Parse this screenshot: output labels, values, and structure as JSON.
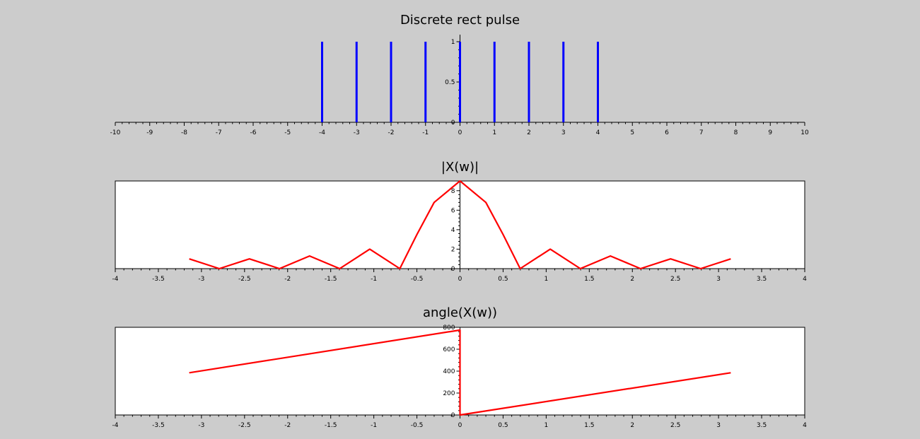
{
  "chart_data": [
    {
      "type": "stem",
      "title": "Discrete rect pulse",
      "xlim": [
        -10,
        10
      ],
      "ylim": [
        0,
        1
      ],
      "xticks": [
        "-10",
        "-9",
        "-8",
        "-7",
        "-6",
        "-5",
        "-4",
        "-3",
        "-2",
        "-1",
        "0",
        "1",
        "2",
        "3",
        "4",
        "5",
        "6",
        "7",
        "8",
        "9",
        "10"
      ],
      "yticks": [
        "0",
        "0.5",
        "1"
      ],
      "boxed": false,
      "series": [
        {
          "x": [
            -4,
            -3,
            -2,
            -1,
            0,
            1,
            2,
            3,
            4
          ],
          "y": [
            1,
            1,
            1,
            1,
            1,
            1,
            1,
            1,
            1
          ],
          "color": "#0000ff"
        }
      ]
    },
    {
      "type": "line",
      "title": "|X(w)|",
      "xlim": [
        -4,
        4
      ],
      "ylim": [
        0,
        9
      ],
      "xticks": [
        "-4",
        "-3.5",
        "-3",
        "-2.5",
        "-2",
        "-1.5",
        "-1",
        "-0.5",
        "0",
        "0.5",
        "1",
        "1.5",
        "2",
        "2.5",
        "3",
        "3.5",
        "4"
      ],
      "yticks": [
        "0",
        "2",
        "4",
        "6",
        "8"
      ],
      "boxed": true,
      "series": [
        {
          "color": "#ff0000",
          "x": [
            -3.1416,
            -2.7925,
            -2.4435,
            -2.0944,
            -1.7453,
            -1.3963,
            -1.0472,
            -0.6981,
            -0.5,
            -0.3,
            0,
            0.3,
            0.5,
            0.6981,
            1.0472,
            1.3963,
            1.7453,
            2.0944,
            2.4435,
            2.7925,
            3.1416
          ],
          "y": [
            1,
            0,
            1,
            0,
            1.3,
            0,
            2,
            0,
            3.5,
            6.8,
            9,
            6.8,
            3.5,
            0,
            2,
            0,
            1.3,
            0,
            1,
            0,
            1
          ]
        }
      ]
    },
    {
      "type": "line",
      "title": "angle(X(w))",
      "xlim": [
        -4,
        4
      ],
      "ylim": [
        0,
        800
      ],
      "xticks": [
        "-4",
        "-3.5",
        "-3",
        "-2.5",
        "-2",
        "-1.5",
        "-1",
        "-0.5",
        "0",
        "0.5",
        "1",
        "1.5",
        "2",
        "2.5",
        "3",
        "3.5",
        "4"
      ],
      "yticks": [
        "0",
        "200",
        "400",
        "600",
        "800"
      ],
      "boxed": true,
      "series": [
        {
          "color": "#ff0000",
          "x": [
            -3.1416,
            -0.0001,
            0,
            3.1416
          ],
          "y": [
            385,
            775,
            0,
            385
          ]
        }
      ]
    }
  ]
}
